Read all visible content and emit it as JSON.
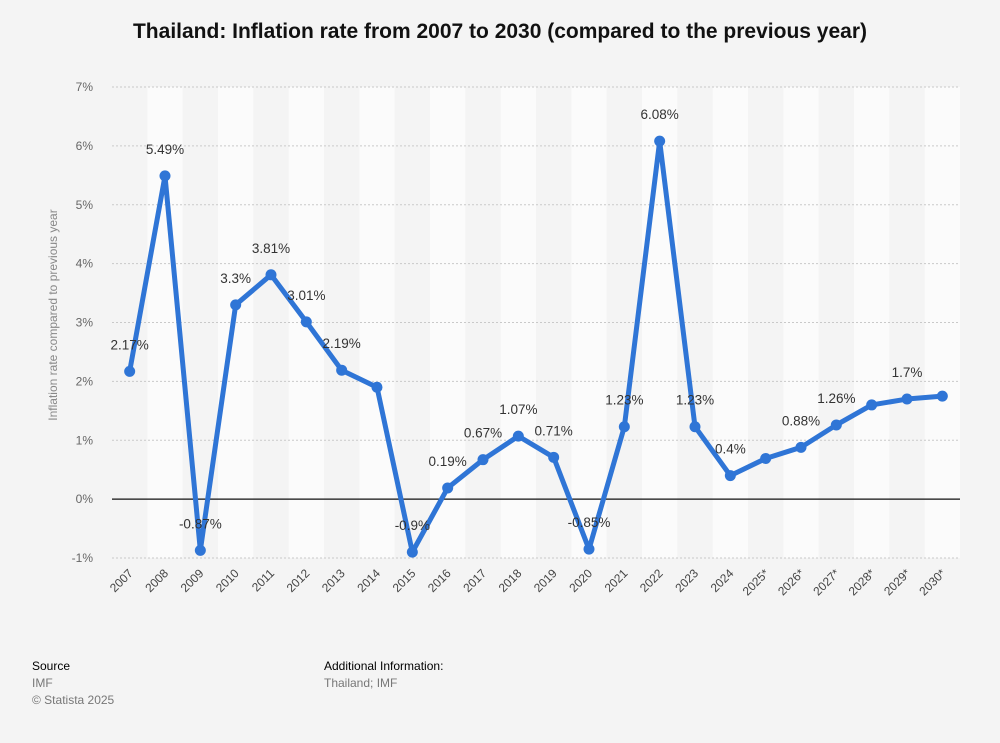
{
  "title": "Thailand: Inflation rate from 2007 to 2030 (compared to the previous year)",
  "footer": {
    "source_heading": "Source",
    "source_name": "IMF",
    "copyright": "© Statista 2025",
    "info_heading": "Additional Information:",
    "info_text": "Thailand; IMF"
  },
  "chart_data": {
    "type": "line",
    "title": "Thailand: Inflation rate from 2007 to 2030 (compared to the previous year)",
    "xlabel": "",
    "ylabel": "Inflation rate compared to previous year",
    "ylim": [
      -1,
      7
    ],
    "yticks": [
      -1,
      0,
      1,
      2,
      3,
      4,
      5,
      6,
      7
    ],
    "ytick_labels": [
      "-1%",
      "0%",
      "1%",
      "2%",
      "3%",
      "4%",
      "5%",
      "6%",
      "7%"
    ],
    "grid": true,
    "legend": "none",
    "line_color": "#2f75d6",
    "categories": [
      "2007",
      "2008",
      "2009",
      "2010",
      "2011",
      "2012",
      "2013",
      "2014",
      "2015",
      "2016",
      "2017",
      "2018",
      "2019",
      "2020",
      "2021",
      "2022",
      "2023",
      "2024",
      "2025*",
      "2026*",
      "2027*",
      "2028*",
      "2029*",
      "2030*"
    ],
    "values": [
      2.17,
      5.49,
      -0.87,
      3.3,
      3.81,
      3.01,
      2.19,
      1.9,
      -0.9,
      0.19,
      0.67,
      1.07,
      0.71,
      -0.85,
      1.23,
      6.08,
      1.23,
      0.4,
      0.69,
      0.88,
      1.26,
      1.6,
      1.7,
      1.75
    ],
    "data_labels": [
      "2.17%",
      "5.49%",
      "-0.87%",
      "3.3%",
      "3.81%",
      "3.01%",
      "2.19%",
      "",
      "-0.9%",
      "0.19%",
      "0.67%",
      "1.07%",
      "0.71%",
      "-0.85%",
      "1.23%",
      "6.08%",
      "1.23%",
      "0.4%",
      "",
      "0.88%",
      "1.26%",
      "",
      "1.7%",
      ""
    ]
  }
}
